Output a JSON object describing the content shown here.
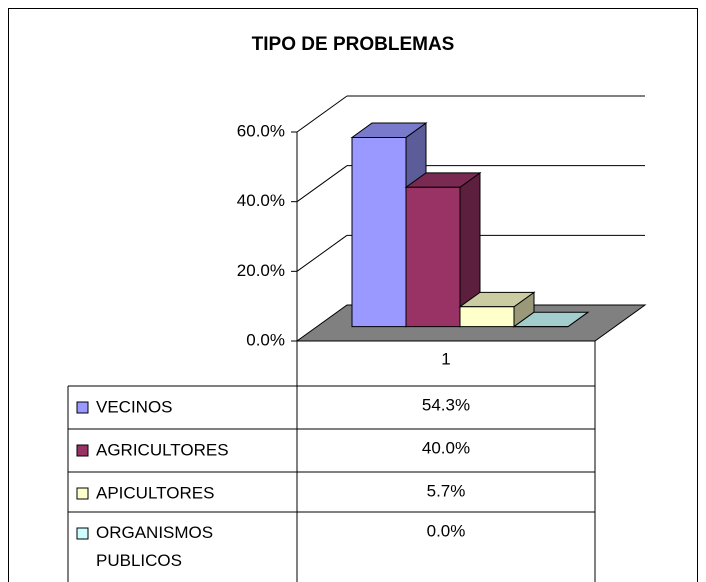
{
  "chart_data": {
    "type": "bar3d",
    "title": "TIPO DE PROBLEMAS",
    "categories": [
      "1"
    ],
    "series": [
      {
        "name": "VECINOS",
        "color": "#9999ff",
        "values": [
          54.3
        ],
        "value_labels": [
          "54.3%"
        ]
      },
      {
        "name": "AGRICULTORES",
        "color": "#993366",
        "values": [
          40.0
        ],
        "value_labels": [
          "40.0%"
        ]
      },
      {
        "name": "APICULTORES",
        "color": "#ffffcc",
        "values": [
          5.7
        ],
        "value_labels": [
          "5.7%"
        ]
      },
      {
        "name": "ORGANISMOS PUBLICOS",
        "color": "#ccffff",
        "values": [
          0.0
        ],
        "value_labels": [
          "0.0%"
        ]
      }
    ],
    "ylim": [
      0,
      60
    ],
    "yticks": [
      {
        "value": 0,
        "label": "0.0%"
      },
      {
        "value": 20,
        "label": "20.0%"
      },
      {
        "value": 40,
        "label": "40.0%"
      },
      {
        "value": 60,
        "label": "60.0%"
      }
    ],
    "grid": true,
    "data_table": true
  }
}
